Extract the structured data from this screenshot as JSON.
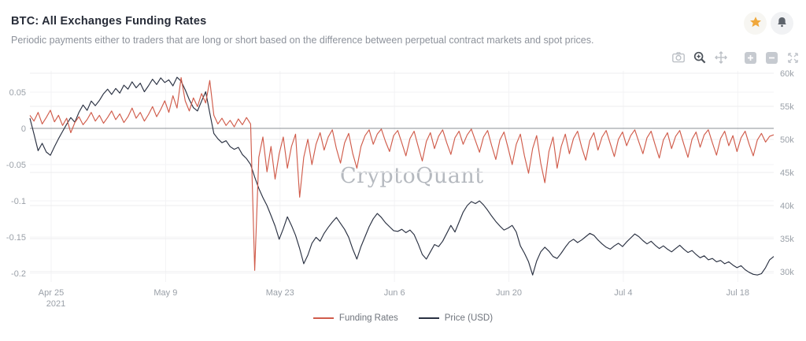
{
  "header": {
    "title": "BTC: All Exchanges Funding Rates",
    "subtitle": "Periodic payments either to traders that are long or short based on the difference between perpetual contract markets and spot prices.",
    "actions": [
      {
        "icon": "star-icon",
        "color": "#f0a83c"
      },
      {
        "icon": "bell-icon",
        "color": "#5d636b"
      }
    ]
  },
  "toolbar": {
    "icons": [
      "camera-icon",
      "zoom-in-icon",
      "pan-icon",
      "zoom-in-square-icon",
      "zoom-out-square-icon",
      "expand-icon"
    ],
    "active_icon": "zoom-in-icon"
  },
  "watermark": "CryptoQuant",
  "colors": {
    "funding_line": "#d05c4b",
    "price_line": "#2a3142",
    "grid": "#ededef",
    "grid_faint": "#f3f3f5",
    "zero_line": "#8b9096",
    "axis_text": "#9aa0a8"
  },
  "chart_data": {
    "type": "line",
    "title": "BTC: All Exchanges Funding Rates",
    "x_range_days": [
      0,
      91
    ],
    "x_tick_positions_days": [
      2.6,
      16.6,
      30.6,
      44.6,
      58.6,
      72.6,
      86.6
    ],
    "x_tick_labels": [
      "Apr 25",
      "May 9",
      "May 23",
      "Jun 6",
      "Jun 20",
      "Jul 4",
      "Jul 18"
    ],
    "x_first_tick_sublabel": "2021",
    "left_axis": {
      "ticks": [
        0.05,
        0,
        -0.05,
        -0.1,
        -0.15,
        -0.2
      ],
      "labels": [
        "0.05",
        "0",
        "-0.05",
        "-0.1",
        "-0.15",
        "-0.2"
      ],
      "range": [
        -0.212,
        0.0793
      ]
    },
    "right_axis": {
      "ticks": [
        60,
        55,
        50,
        45,
        40,
        35,
        30
      ],
      "labels": [
        "60k",
        "55k",
        "50k",
        "45k",
        "40k",
        "35k",
        "30k"
      ],
      "range": [
        28.45,
        60.36
      ]
    },
    "legend_position": "bottom",
    "grid": "on",
    "series": [
      {
        "name": "Funding Rates",
        "color": "#d05c4b",
        "axis": "left",
        "x_start": 0,
        "x_step": 0.5,
        "values": [
          0.018,
          0.01,
          0.022,
          0.006,
          0.015,
          0.025,
          0.009,
          0.018,
          0.004,
          0.014,
          -0.006,
          0.008,
          0.016,
          0.005,
          0.012,
          0.022,
          0.01,
          0.018,
          0.007,
          0.015,
          0.024,
          0.012,
          0.02,
          0.008,
          0.016,
          0.028,
          0.014,
          0.022,
          0.01,
          0.019,
          0.03,
          0.016,
          0.026,
          0.038,
          0.022,
          0.045,
          0.028,
          0.07,
          0.038,
          0.024,
          0.042,
          0.03,
          0.048,
          0.035,
          0.066,
          0.018,
          0.006,
          0.014,
          0.004,
          0.011,
          0.002,
          0.013,
          0.005,
          0.015,
          0.006,
          -0.196,
          -0.04,
          -0.012,
          -0.06,
          -0.025,
          -0.07,
          -0.035,
          -0.012,
          -0.055,
          -0.025,
          -0.008,
          -0.095,
          -0.04,
          -0.015,
          -0.05,
          -0.022,
          -0.006,
          -0.03,
          -0.012,
          -0.002,
          -0.028,
          -0.048,
          -0.02,
          -0.007,
          -0.035,
          -0.055,
          -0.025,
          -0.01,
          -0.002,
          -0.022,
          -0.008,
          -0.001,
          -0.018,
          -0.032,
          -0.01,
          -0.003,
          -0.02,
          -0.038,
          -0.014,
          -0.004,
          -0.025,
          -0.045,
          -0.018,
          -0.006,
          -0.028,
          -0.011,
          -0.002,
          -0.02,
          -0.036,
          -0.013,
          -0.004,
          -0.022,
          -0.009,
          -0.001,
          -0.017,
          -0.033,
          -0.012,
          -0.003,
          -0.024,
          -0.043,
          -0.016,
          -0.005,
          -0.027,
          -0.05,
          -0.022,
          -0.008,
          -0.038,
          -0.062,
          -0.028,
          -0.01,
          -0.048,
          -0.075,
          -0.032,
          -0.012,
          -0.055,
          -0.025,
          -0.008,
          -0.035,
          -0.014,
          -0.004,
          -0.026,
          -0.044,
          -0.017,
          -0.006,
          -0.03,
          -0.012,
          -0.003,
          -0.021,
          -0.039,
          -0.015,
          -0.005,
          -0.024,
          -0.01,
          -0.002,
          -0.019,
          -0.035,
          -0.013,
          -0.004,
          -0.023,
          -0.041,
          -0.016,
          -0.006,
          -0.028,
          -0.011,
          -0.003,
          -0.022,
          -0.04,
          -0.015,
          -0.005,
          -0.026,
          -0.009,
          -0.002,
          -0.02,
          -0.037,
          -0.014,
          -0.004,
          -0.024,
          -0.01,
          -0.032,
          -0.013,
          -0.004,
          -0.022,
          -0.038,
          -0.016,
          -0.007,
          -0.019,
          -0.011,
          -0.009
        ]
      },
      {
        "name": "Price (USD)",
        "color": "#2a3142",
        "axis": "right",
        "x_start": 0,
        "x_step": 0.5,
        "values": [
          53.2,
          50.8,
          48.3,
          49.4,
          48.1,
          47.6,
          48.9,
          50.1,
          51.2,
          52.3,
          53.3,
          52.6,
          54.1,
          55.2,
          54.4,
          55.8,
          55.1,
          55.9,
          56.9,
          57.6,
          56.8,
          57.7,
          57.0,
          58.2,
          57.6,
          58.7,
          57.8,
          58.5,
          57.2,
          58.1,
          59.1,
          58.3,
          59.3,
          58.6,
          59.0,
          58.1,
          59.4,
          58.8,
          57.5,
          56.0,
          54.8,
          54.3,
          55.8,
          57.2,
          54.0,
          50.9,
          50.1,
          49.5,
          49.8,
          48.9,
          48.5,
          48.8,
          47.7,
          47.1,
          46.2,
          44.3,
          42.6,
          41.2,
          40.0,
          38.5,
          36.9,
          34.9,
          36.5,
          38.3,
          37.0,
          35.5,
          33.5,
          31.2,
          32.5,
          34.3,
          35.2,
          34.6,
          35.8,
          36.7,
          37.5,
          38.2,
          37.3,
          36.4,
          35.2,
          33.4,
          31.9,
          33.8,
          35.3,
          36.8,
          38.0,
          38.8,
          38.2,
          37.4,
          36.8,
          36.2,
          36.1,
          36.4,
          35.9,
          36.3,
          35.6,
          34.2,
          32.6,
          31.9,
          33.0,
          34.1,
          33.8,
          34.6,
          35.8,
          37.0,
          36.0,
          37.5,
          39.0,
          40.0,
          40.6,
          40.3,
          40.7,
          40.1,
          39.3,
          38.4,
          37.6,
          36.9,
          36.3,
          36.6,
          37.0,
          36.0,
          33.9,
          32.8,
          31.5,
          29.5,
          31.6,
          33.0,
          33.7,
          33.1,
          32.3,
          32.0,
          32.8,
          33.7,
          34.5,
          34.9,
          34.4,
          34.8,
          35.3,
          35.8,
          35.5,
          34.8,
          34.2,
          33.7,
          33.4,
          33.9,
          34.3,
          33.8,
          34.5,
          35.1,
          35.7,
          35.3,
          34.7,
          34.2,
          34.6,
          34.0,
          33.5,
          33.9,
          33.4,
          33.0,
          33.5,
          34.0,
          33.4,
          32.9,
          33.2,
          32.6,
          32.1,
          32.4,
          31.8,
          32.0,
          31.5,
          31.7,
          31.2,
          31.5,
          31.0,
          30.6,
          30.9,
          30.3,
          29.9,
          29.6,
          29.5,
          29.7,
          30.6,
          31.8,
          32.3
        ]
      }
    ]
  }
}
